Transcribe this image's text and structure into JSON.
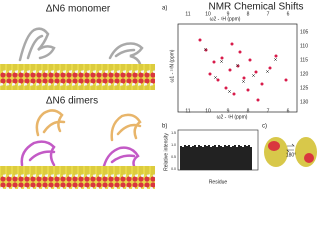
{
  "monomer": {
    "title": "ΔN6 monomer"
  },
  "dimer": {
    "title": "ΔN6 dimers"
  },
  "nmr": {
    "label": "a)",
    "title": "NMR Chemical Shifts",
    "x_ticks": [
      "11",
      "10",
      "9",
      "8",
      "7",
      "6"
    ],
    "x_label": "ω2 - ¹H (ppm)",
    "y_ticks": [
      "105",
      "110",
      "115",
      "120",
      "125",
      "130"
    ],
    "y_label": "ω1 - ¹⁵N (ppm)"
  },
  "intensity": {
    "label": "b)",
    "y_label": "Relative intensity",
    "y_ticks": [
      "1.5",
      "1.0",
      "0.5",
      "0.0"
    ],
    "x_label": "Residue"
  },
  "rotation": {
    "label": "c)",
    "angle": "180°"
  }
}
